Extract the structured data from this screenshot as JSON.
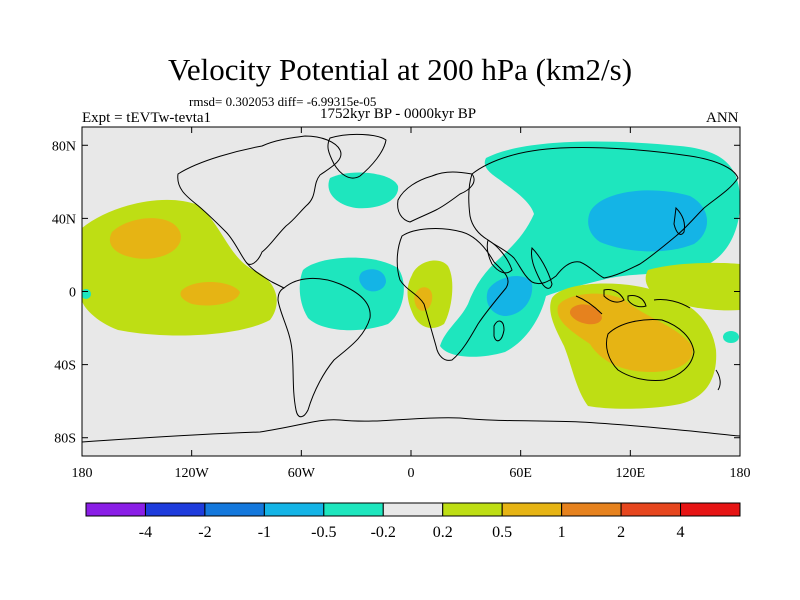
{
  "title": "Velocity Potential at 200 hPa (km2/s)",
  "stats": "rmsd= 0.302053 diff= -6.99315e-05",
  "experiment": "Expt = tEVTw-tevta1",
  "period": "1752kyr BP - 0000kyr BP",
  "season": "ANN",
  "x_ticks": [
    "180",
    "120W",
    "60W",
    "0",
    "60E",
    "120E",
    "180"
  ],
  "y_ticks": [
    "80N",
    "40N",
    "0",
    "40S",
    "80S"
  ],
  "colorbar": {
    "colors": [
      "#8a1ee6",
      "#1e3cdc",
      "#1478dc",
      "#14b4e6",
      "#1ee6be",
      "#e8e8e8",
      "#bede14",
      "#e6b414",
      "#e6821e",
      "#e6461e",
      "#e61414"
    ],
    "labels": [
      "-4",
      "-2",
      "-1",
      "-0.5",
      "-0.2",
      "0.2",
      "0.5",
      "1",
      "2",
      "4"
    ]
  },
  "colors": {
    "neutral": "#e8e8e8",
    "neg_light": "#1ee6be",
    "neg_mid": "#14b4e6",
    "pos_light": "#bede14",
    "pos_mid": "#e6b414",
    "pos_strong": "#e6821e"
  }
}
